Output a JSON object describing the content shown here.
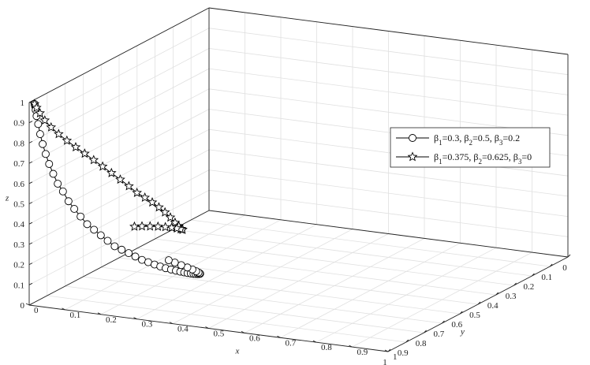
{
  "chart_data": {
    "type": "line3d",
    "axes": {
      "x": {
        "label": "x",
        "range": [
          0,
          1
        ],
        "ticks": [
          "0",
          "0.1",
          "0.2",
          "0.3",
          "0.4",
          "0.5",
          "0.6",
          "0.7",
          "0.8",
          "0.9",
          "1"
        ]
      },
      "y": {
        "label": "y",
        "range": [
          0,
          1
        ],
        "ticks": [
          "0",
          "0.1",
          "0.2",
          "0.3",
          "0.4",
          "0.5",
          "0.6",
          "0.7",
          "0.8",
          "0.9",
          "1"
        ]
      },
      "z": {
        "label": "z",
        "range": [
          0,
          1
        ],
        "ticks": [
          "0",
          "0.1",
          "0.2",
          "0.3",
          "0.4",
          "0.5",
          "0.6",
          "0.7",
          "0.8",
          "0.9",
          "1"
        ]
      }
    },
    "grid": true,
    "legend_position": "right",
    "series": [
      {
        "name": "β1=0.3, β2=0.5, β3=0.2",
        "legend": {
          "b1": "0.3",
          "b2": "0.5",
          "b3": "0.2"
        },
        "marker": "circle",
        "points": [
          [
            0.01,
            0.99,
            0.99
          ],
          [
            0.011,
            0.989,
            0.98
          ],
          [
            0.012,
            0.988,
            0.96
          ],
          [
            0.014,
            0.987,
            0.93
          ],
          [
            0.017,
            0.984,
            0.89
          ],
          [
            0.021,
            0.981,
            0.84
          ],
          [
            0.026,
            0.977,
            0.79
          ],
          [
            0.032,
            0.972,
            0.74
          ],
          [
            0.039,
            0.967,
            0.69
          ],
          [
            0.047,
            0.96,
            0.64
          ],
          [
            0.056,
            0.953,
            0.59
          ],
          [
            0.066,
            0.944,
            0.55
          ],
          [
            0.077,
            0.935,
            0.5
          ],
          [
            0.088,
            0.925,
            0.46
          ],
          [
            0.1,
            0.914,
            0.42
          ],
          [
            0.113,
            0.903,
            0.38
          ],
          [
            0.126,
            0.891,
            0.35
          ],
          [
            0.139,
            0.879,
            0.32
          ],
          [
            0.152,
            0.867,
            0.29
          ],
          [
            0.165,
            0.854,
            0.26
          ],
          [
            0.178,
            0.841,
            0.24
          ],
          [
            0.191,
            0.828,
            0.22
          ],
          [
            0.203,
            0.815,
            0.2
          ],
          [
            0.215,
            0.802,
            0.18
          ],
          [
            0.226,
            0.789,
            0.165
          ],
          [
            0.237,
            0.776,
            0.15
          ],
          [
            0.247,
            0.764,
            0.137
          ],
          [
            0.256,
            0.752,
            0.125
          ],
          [
            0.265,
            0.74,
            0.115
          ],
          [
            0.273,
            0.729,
            0.106
          ],
          [
            0.28,
            0.719,
            0.098
          ],
          [
            0.286,
            0.709,
            0.091
          ],
          [
            0.291,
            0.7,
            0.085
          ],
          [
            0.296,
            0.692,
            0.08
          ],
          [
            0.3,
            0.685,
            0.076
          ],
          [
            0.303,
            0.679,
            0.073
          ],
          [
            0.306,
            0.674,
            0.071
          ],
          [
            0.308,
            0.67,
            0.07
          ],
          [
            0.31,
            0.668,
            0.071
          ],
          [
            0.31,
            0.67,
            0.074
          ],
          [
            0.309,
            0.675,
            0.08
          ],
          [
            0.307,
            0.684,
            0.09
          ],
          [
            0.303,
            0.697,
            0.104
          ],
          [
            0.297,
            0.713,
            0.12
          ],
          [
            0.289,
            0.731,
            0.138
          ],
          [
            0.28,
            0.749,
            0.157
          ],
          [
            0.271,
            0.765,
            0.174
          ]
        ]
      },
      {
        "name": "β1=0.375, β2=0.625, β3=0",
        "legend": {
          "b1": "0.375",
          "b2": "0.625",
          "b3": "0"
        },
        "marker": "star",
        "points": [
          [
            0.01,
            0.99,
            0.99
          ],
          [
            0.013,
            0.985,
            0.97
          ],
          [
            0.018,
            0.976,
            0.94
          ],
          [
            0.025,
            0.963,
            0.9
          ],
          [
            0.034,
            0.946,
            0.86
          ],
          [
            0.045,
            0.926,
            0.82
          ],
          [
            0.057,
            0.904,
            0.78
          ],
          [
            0.07,
            0.881,
            0.74
          ],
          [
            0.083,
            0.857,
            0.7
          ],
          [
            0.096,
            0.833,
            0.66
          ],
          [
            0.109,
            0.809,
            0.62
          ],
          [
            0.122,
            0.786,
            0.58
          ],
          [
            0.135,
            0.763,
            0.54
          ],
          [
            0.148,
            0.741,
            0.5
          ],
          [
            0.16,
            0.72,
            0.46
          ],
          [
            0.172,
            0.7,
            0.43
          ],
          [
            0.183,
            0.681,
            0.4
          ],
          [
            0.193,
            0.664,
            0.37
          ],
          [
            0.202,
            0.648,
            0.34
          ],
          [
            0.21,
            0.634,
            0.31
          ],
          [
            0.217,
            0.622,
            0.28
          ],
          [
            0.223,
            0.613,
            0.26
          ],
          [
            0.227,
            0.607,
            0.245
          ],
          [
            0.229,
            0.604,
            0.24
          ],
          [
            0.229,
            0.605,
            0.24
          ],
          [
            0.227,
            0.611,
            0.245
          ],
          [
            0.222,
            0.622,
            0.253
          ],
          [
            0.215,
            0.637,
            0.262
          ],
          [
            0.207,
            0.656,
            0.272
          ],
          [
            0.198,
            0.679,
            0.283
          ],
          [
            0.189,
            0.705,
            0.294
          ],
          [
            0.18,
            0.732,
            0.305
          ],
          [
            0.172,
            0.758,
            0.314
          ]
        ]
      }
    ]
  }
}
